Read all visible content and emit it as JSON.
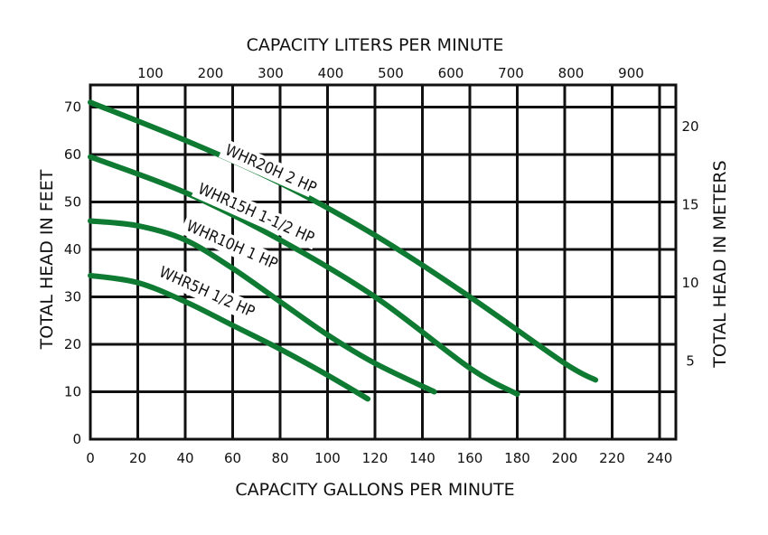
{
  "chart_data": {
    "type": "line",
    "title": "",
    "xlabel": "CAPACITY GALLONS PER MINUTE",
    "x2label": "CAPACITY LITERS PER MINUTE",
    "ylabel": "TOTAL HEAD IN FEET",
    "y2label": "TOTAL HEAD IN METERS",
    "xlim": [
      0,
      246
    ],
    "ylim": [
      0,
      72
    ],
    "grid": true,
    "x_ticks": [
      "0",
      "20",
      "40",
      "60",
      "80",
      "100",
      "120",
      "140",
      "160",
      "180",
      "200",
      "220",
      "240"
    ],
    "x_tick_values": [
      0,
      20,
      40,
      60,
      80,
      100,
      120,
      140,
      160,
      180,
      200,
      220,
      240
    ],
    "y_ticks": [
      "0",
      "10",
      "20",
      "30",
      "40",
      "50",
      "60",
      "70"
    ],
    "y_tick_values": [
      0,
      10,
      20,
      30,
      40,
      50,
      60,
      70
    ],
    "x2_ticks": [
      "100",
      "200",
      "300",
      "400",
      "500",
      "600",
      "700",
      "800",
      "900"
    ],
    "x2_tick_values": [
      100,
      200,
      300,
      400,
      500,
      600,
      700,
      800,
      900
    ],
    "y2_ticks": [
      "5",
      "10",
      "15",
      "20"
    ],
    "y2_tick_values": [
      5,
      10,
      15,
      20
    ],
    "line_color": "#0f7a32",
    "series": [
      {
        "name": "WHR20H 2 HP",
        "x": [
          0,
          40,
          80,
          120,
          160,
          200,
          213
        ],
        "y": [
          71,
          63,
          54,
          43,
          30,
          16,
          12.5
        ]
      },
      {
        "name": "WHR15H 1-1/2 HP",
        "x": [
          0,
          40,
          80,
          120,
          160,
          180
        ],
        "y": [
          59.5,
          52,
          42,
          30,
          15,
          9.5
        ]
      },
      {
        "name": "WHR10H 1 HP",
        "x": [
          0,
          20,
          40,
          60,
          80,
          100,
          120,
          145
        ],
        "y": [
          46,
          45,
          42,
          36,
          29,
          22,
          16,
          10
        ]
      },
      {
        "name": "WHR5H 1/2 HP",
        "x": [
          0,
          20,
          40,
          60,
          80,
          100,
          117
        ],
        "y": [
          34.5,
          33,
          29,
          24,
          19,
          13.5,
          8.5
        ]
      }
    ]
  }
}
